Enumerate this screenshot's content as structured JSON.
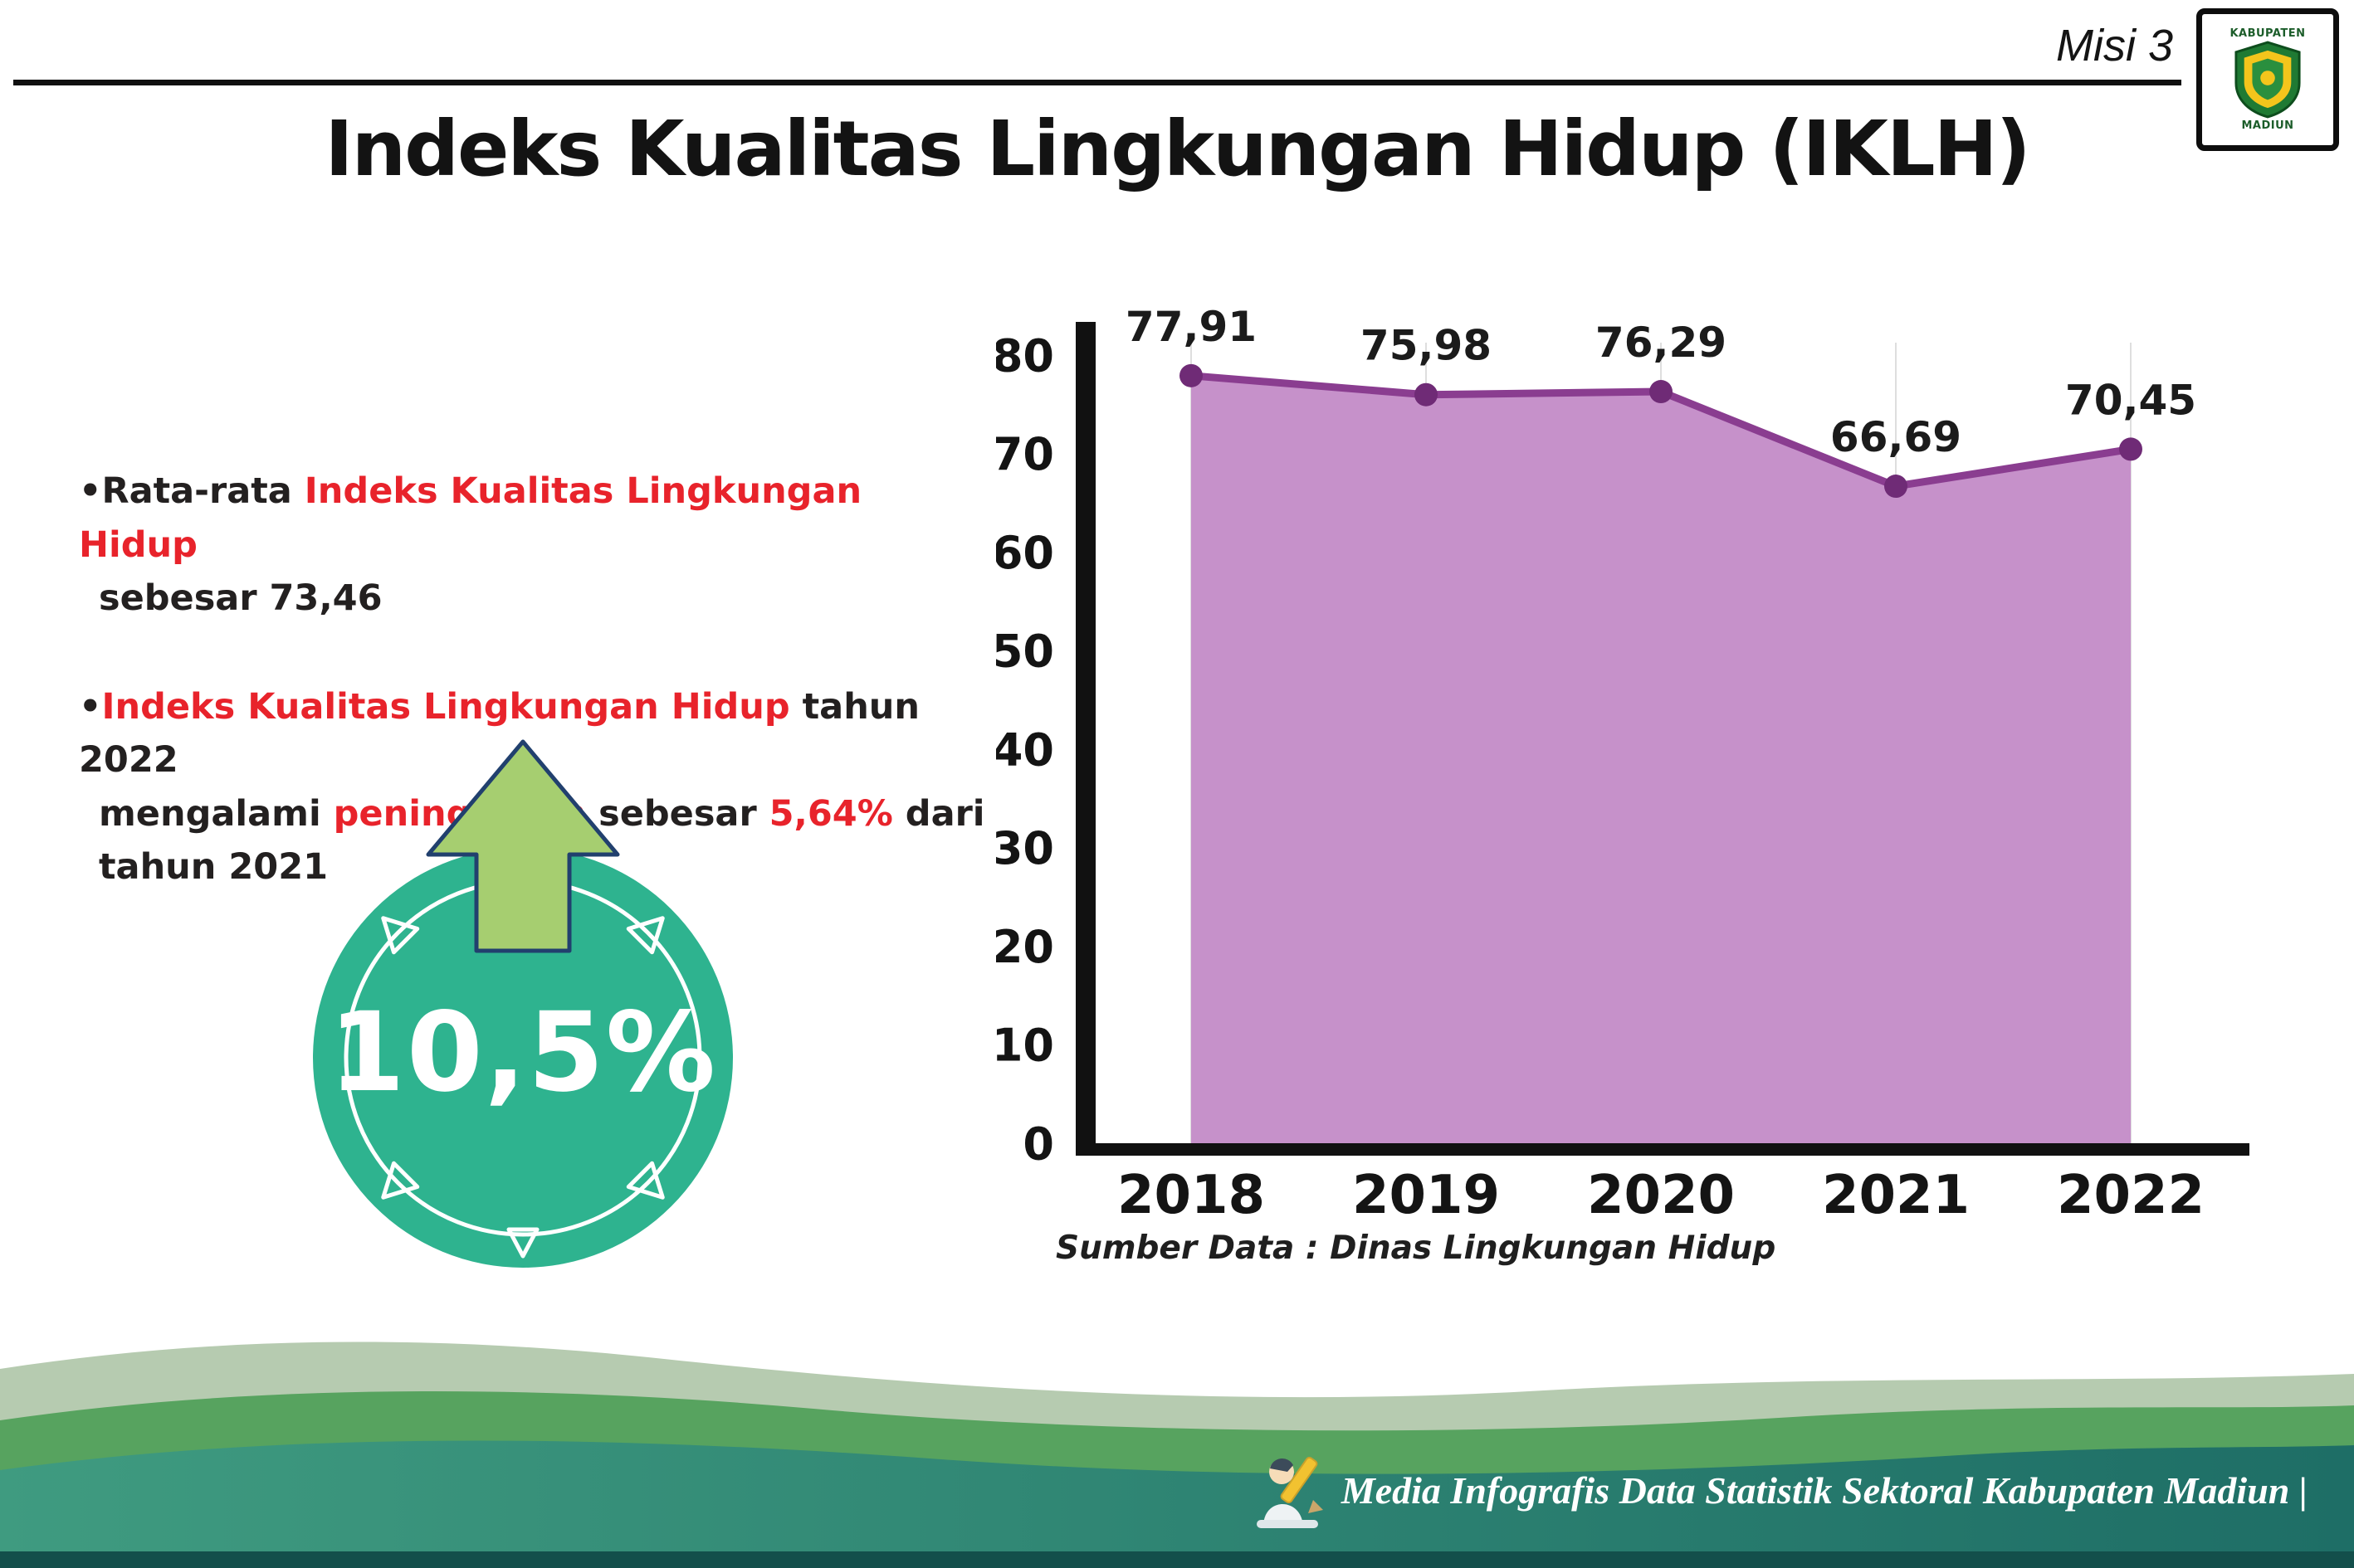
{
  "page": {
    "misi_label": "Misi 3",
    "title": "Indeks Kualitas Lingkungan Hidup (IKLH)"
  },
  "logo": {
    "top_text": "KABUPATEN",
    "bottom_text": "MADIUN"
  },
  "bullet_char": "•",
  "bullets": [
    {
      "lines": [
        [
          {
            "t": "Rata-rata ",
            "c": "dark"
          },
          {
            "t": "Indeks Kualitas Lingkungan Hidup",
            "c": "red"
          }
        ],
        [
          {
            "t": "sebesar 73,46",
            "c": "dark"
          }
        ]
      ]
    },
    {
      "lines": [
        [
          {
            "t": "Indeks Kualitas Lingkungan Hidup",
            "c": "red"
          },
          {
            "t": " tahun 2022",
            "c": "dark"
          }
        ],
        [
          {
            "t": "mengalami ",
            "c": "dark"
          },
          {
            "t": "peningkatan",
            "c": "red"
          },
          {
            "t": " sebesar ",
            "c": "dark"
          },
          {
            "t": "5,64%",
            "c": "red"
          },
          {
            "t": " dari",
            "c": "dark"
          }
        ],
        [
          {
            "t": "tahun 2021",
            "c": "dark"
          }
        ]
      ]
    }
  ],
  "badge": {
    "value": "10,5%"
  },
  "chart_data": {
    "type": "area",
    "categories": [
      "2018",
      "2019",
      "2020",
      "2021",
      "2022"
    ],
    "values": [
      77.91,
      75.98,
      76.29,
      66.69,
      70.45
    ],
    "value_labels": [
      "77,91",
      "75,98",
      "76,29",
      "66,69",
      "70,45"
    ],
    "ylim": [
      0,
      80
    ],
    "yticks": [
      0,
      10,
      20,
      30,
      40,
      50,
      60,
      70,
      80
    ],
    "grid": "vertical-light",
    "legend": "none",
    "area_color": "#c691ca",
    "line_color": "#8a3d90",
    "point_color": "#6f2b76",
    "source": "Sumber Data : Dinas Lingkungan Hidup"
  },
  "footer": {
    "caption": "Media Infografis Data Statistik Sektoral Kabupaten Madiun |"
  },
  "colors": {
    "accent_red": "#e8232b",
    "text_dark": "#232020",
    "badge_teal": "#2eb38f",
    "arrow_green": "#a6ce70",
    "arrow_outline": "#21406e",
    "area_purple": "#c691ca",
    "line_purple": "#8a3d90",
    "footer_teal_dark": "#1e6e66",
    "footer_green": "#57a35f"
  }
}
